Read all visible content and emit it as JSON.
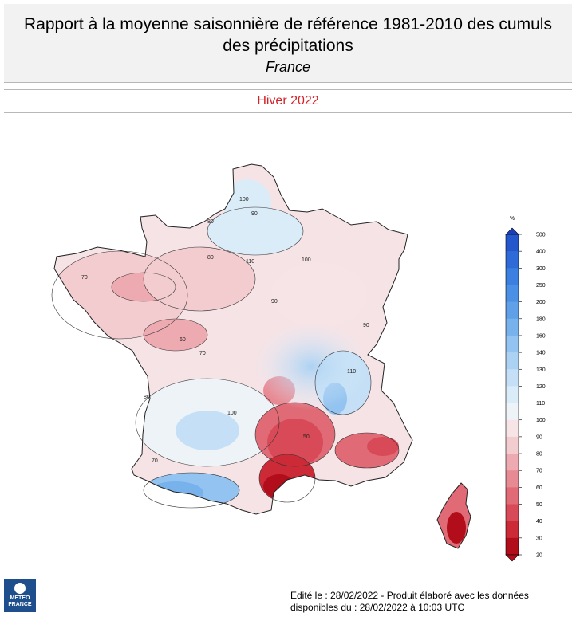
{
  "header": {
    "title_line1": "Rapport à la moyenne saisonnière de référence 1981-2010 des cumuls",
    "title_line2": "des précipitations",
    "region": "France"
  },
  "period": "Hiver 2022",
  "map": {
    "contour_labels": [
      "70",
      "80",
      "90",
      "100",
      "110",
      "100",
      "90",
      "80",
      "70",
      "60",
      "50",
      "110",
      "100",
      "90",
      "80",
      "70"
    ]
  },
  "legend": {
    "unit": "%",
    "ticks": [
      "500",
      "400",
      "300",
      "250",
      "200",
      "180",
      "160",
      "140",
      "130",
      "120",
      "110",
      "100",
      "90",
      "80",
      "70",
      "60",
      "50",
      "40",
      "30",
      "20"
    ],
    "colors": [
      "#1a3fb8",
      "#2456cc",
      "#2f6bd8",
      "#3b7fe0",
      "#4b90e4",
      "#5fa0e8",
      "#78b2ec",
      "#93c3f0",
      "#acd2f3",
      "#c5e0f6",
      "#dbecf9",
      "#eef3f8",
      "#f6e4e6",
      "#f3ccd0",
      "#eeaab1",
      "#e88a93",
      "#e06a75",
      "#d84a57",
      "#cc2a36",
      "#b20d1a"
    ]
  },
  "logo": {
    "line1": "METEO",
    "line2": "FRANCE"
  },
  "footer": {
    "line1": "Edité le : 28/02/2022 - Produit élaboré avec les données",
    "line2": "disponibles du : 28/02/2022 à 10:03 UTC"
  }
}
